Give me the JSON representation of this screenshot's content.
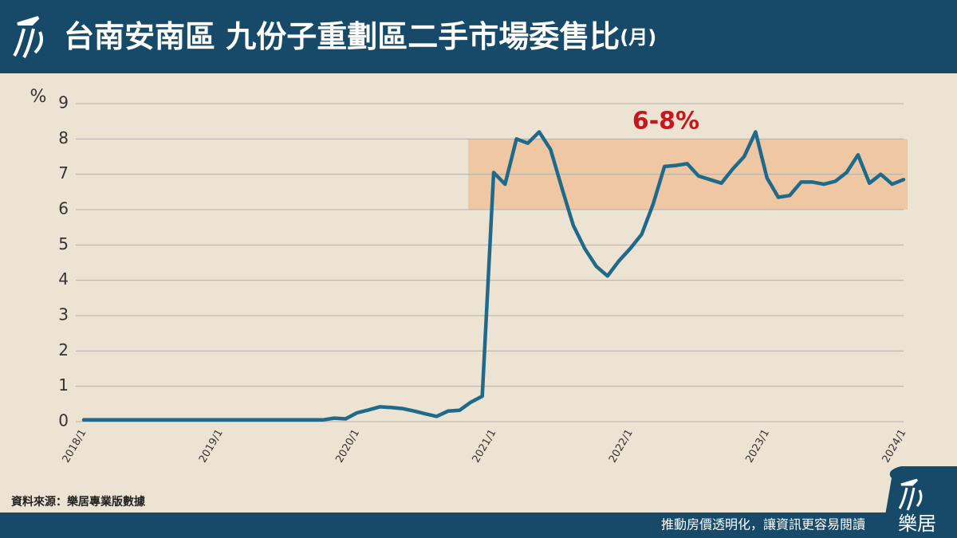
{
  "chart_data": {
    "type": "line",
    "title": "台南安南區 九份子重劃區二手市場委售比",
    "title_suffix": "(月)",
    "y_label": "%",
    "categories": [
      "2018/1",
      null,
      null,
      null,
      null,
      null,
      null,
      null,
      null,
      null,
      null,
      null,
      "2019/1",
      null,
      null,
      null,
      null,
      null,
      null,
      null,
      null,
      null,
      null,
      null,
      "2020/1",
      null,
      null,
      null,
      null,
      null,
      null,
      null,
      null,
      null,
      null,
      null,
      "2021/1",
      null,
      null,
      null,
      null,
      null,
      null,
      null,
      null,
      null,
      null,
      null,
      "2022/1",
      null,
      null,
      null,
      null,
      null,
      null,
      null,
      null,
      null,
      null,
      null,
      "2023/1",
      null,
      null,
      null,
      null,
      null,
      null,
      null,
      null,
      null,
      null,
      null,
      "2024/1"
    ],
    "series": [
      {
        "name": "委售比",
        "color": "#1f6a8a",
        "values": [
          0.05,
          0.05,
          0.05,
          0.05,
          0.05,
          0.05,
          0.05,
          0.05,
          0.05,
          0.05,
          0.05,
          0.05,
          0.05,
          0.05,
          0.05,
          0.05,
          0.05,
          0.05,
          0.05,
          0.05,
          0.05,
          0.05,
          0.1,
          0.08,
          0.25,
          0.33,
          0.42,
          0.4,
          0.37,
          0.3,
          0.22,
          0.15,
          0.3,
          0.32,
          0.55,
          0.72,
          7.05,
          6.72,
          8.0,
          7.88,
          8.2,
          7.7,
          6.6,
          5.55,
          4.9,
          4.4,
          4.12,
          4.55,
          4.9,
          5.3,
          6.15,
          7.22,
          7.25,
          7.3,
          6.95,
          6.85,
          6.75,
          7.15,
          7.5,
          8.2,
          6.9,
          6.35,
          6.4,
          6.78,
          6.78,
          6.72,
          6.8,
          7.05,
          7.55,
          6.75,
          7.0,
          6.72,
          6.85
        ]
      }
    ],
    "ylim": [
      0,
      9
    ],
    "yticks": [
      0,
      1,
      2,
      3,
      4,
      5,
      6,
      7,
      8,
      9
    ],
    "grid": true,
    "band": {
      "ymin": 6,
      "ymax": 8,
      "label": "6-8%",
      "color": "#efc7a3",
      "label_color": "#c8161d"
    },
    "source": "資料來源：樂居專業版數據",
    "footer": "推動房價透明化，讓資訊更容易閱讀",
    "brand": "樂居"
  }
}
